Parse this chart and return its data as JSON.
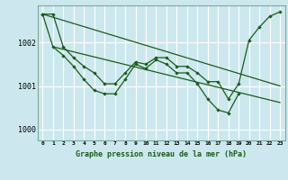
{
  "title": "Graphe pression niveau de la mer (hPa)",
  "bg_color": "#cce8ee",
  "grid_color": "#ffffff",
  "line_color": "#1a5c1a",
  "ylim": [
    999.75,
    1002.85
  ],
  "yticks": [
    1000,
    1001,
    1002
  ],
  "x_labels": [
    "0",
    "1",
    "2",
    "3",
    "4",
    "5",
    "6",
    "7",
    "8",
    "9",
    "10",
    "11",
    "12",
    "13",
    "14",
    "15",
    "16",
    "17",
    "18",
    "19",
    "20",
    "21",
    "22",
    "23"
  ],
  "series_marked_1": {
    "x": [
      0,
      1,
      2,
      3,
      4,
      5,
      6,
      7,
      8,
      9,
      10,
      11,
      12,
      13,
      14,
      15,
      16,
      17,
      18,
      19,
      20,
      21,
      22,
      23
    ],
    "y": [
      1002.65,
      1002.65,
      1001.9,
      1001.65,
      1001.45,
      1001.3,
      1001.05,
      1001.05,
      1001.3,
      1001.55,
      1001.5,
      1001.65,
      1001.65,
      1001.45,
      1001.45,
      1001.3,
      1001.1,
      1001.1,
      1000.7,
      1001.05,
      1002.05,
      1002.35,
      1002.6,
      1002.7
    ]
  },
  "series_marked_2": {
    "x": [
      0,
      1,
      2,
      3,
      4,
      5,
      6,
      7,
      8,
      9,
      10,
      11,
      12,
      13,
      14,
      15,
      16,
      17,
      18,
      19
    ],
    "y": [
      1002.65,
      1001.9,
      1001.7,
      1001.45,
      1001.15,
      1000.9,
      1000.82,
      1000.82,
      1001.15,
      1001.5,
      1001.4,
      1001.6,
      1001.5,
      1001.3,
      1001.3,
      1001.05,
      1000.7,
      1000.45,
      1000.38,
      1000.82
    ]
  },
  "series_line_1": {
    "x": [
      0,
      23
    ],
    "y": [
      1002.65,
      1001.0
    ]
  },
  "series_line_2": {
    "x": [
      1,
      23
    ],
    "y": [
      1001.9,
      1000.62
    ]
  }
}
